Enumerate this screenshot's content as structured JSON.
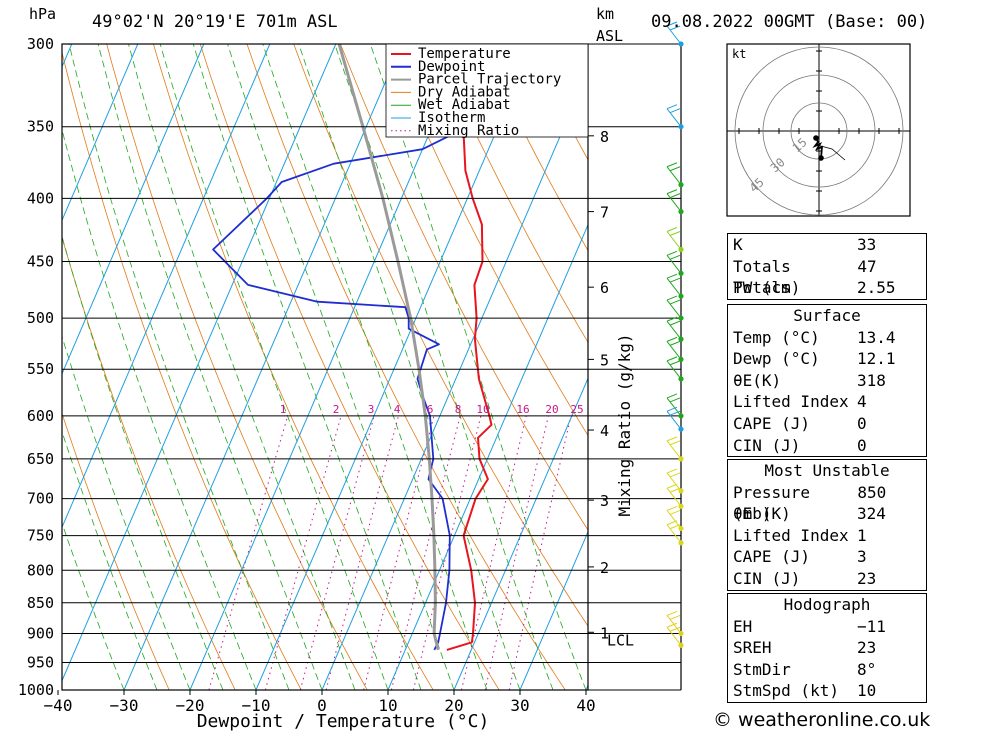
{
  "header": {
    "unit_hpa": "hPa",
    "location": "49°02'N 20°19'E 701m ASL",
    "unit_km": "km",
    "unit_asl": "ASL",
    "datetime": "09.08.2022 00GMT (Base: 00)"
  },
  "colors": {
    "temperature": "#e8141e",
    "dewpoint": "#1e2ecf",
    "parcel": "#9a9a9a",
    "dry_adiabat": "#e07b1a",
    "wet_adiabat": "#1fa81f",
    "isotherm": "#1f9fe0",
    "mixing_ratio": "#c8148c"
  },
  "chart_data": {
    "type": "line",
    "title": "",
    "xlabel": "Dewpoint / Temperature (°C)",
    "ylabel": "Mixing Ratio (g/kg)",
    "xlim": [
      -40,
      40
    ],
    "ylim_hpa": [
      1000,
      300
    ],
    "x_ticks": [
      "−40",
      "−30",
      "−20",
      "−10",
      "0",
      "10",
      "20",
      "30",
      "40"
    ],
    "pressure_ticks": [
      1000,
      950,
      900,
      850,
      800,
      750,
      700,
      650,
      600,
      550,
      500,
      450,
      400,
      350,
      300
    ],
    "km_ticks": [
      {
        "km": "1",
        "p": 898
      },
      {
        "km": "2",
        "p": 795
      },
      {
        "km": "3",
        "p": 702
      },
      {
        "km": "4",
        "p": 616
      },
      {
        "km": "5",
        "p": 540
      },
      {
        "km": "6",
        "p": 472
      },
      {
        "km": "7",
        "p": 410
      },
      {
        "km": "8",
        "p": 356
      }
    ],
    "lcl_label": "LCL",
    "lcl_p": 910,
    "mixing_ratio_labels": [
      "1",
      "2",
      "3",
      "4",
      "6",
      "8",
      "10",
      "16",
      "20",
      "25"
    ],
    "legend": [
      "Temperature",
      "Dewpoint",
      "Parcel Trajectory",
      "Dry Adiabat",
      "Wet Adiabat",
      "Isotherm",
      "Mixing Ratio"
    ],
    "series": [
      {
        "name": "Temperature",
        "points": [
          [
            928,
            16.3
          ],
          [
            915,
            19.6
          ],
          [
            900,
            19.2
          ],
          [
            850,
            17.5
          ],
          [
            800,
            14.8
          ],
          [
            750,
            11.4
          ],
          [
            700,
            10.8
          ],
          [
            675,
            11.4
          ],
          [
            650,
            8.8
          ],
          [
            625,
            7.2
          ],
          [
            610,
            8.4
          ],
          [
            600,
            7.5
          ],
          [
            560,
            3.5
          ],
          [
            520,
            0.3
          ],
          [
            500,
            -0.8
          ],
          [
            470,
            -3.3
          ],
          [
            450,
            -3.6
          ],
          [
            420,
            -6.1
          ],
          [
            400,
            -9.2
          ],
          [
            380,
            -12.1
          ],
          [
            360,
            -14.2
          ],
          [
            340,
            -16.5
          ],
          [
            320,
            -19.7
          ],
          [
            300,
            -24.1
          ]
        ]
      },
      {
        "name": "Dewpoint",
        "points": [
          [
            928,
            14.4
          ],
          [
            915,
            14.5
          ],
          [
            900,
            14.2
          ],
          [
            850,
            13.1
          ],
          [
            800,
            11.5
          ],
          [
            750,
            9.3
          ],
          [
            700,
            5.8
          ],
          [
            675,
            2.4
          ],
          [
            650,
            1.8
          ],
          [
            600,
            -1.5
          ],
          [
            580,
            -3.7
          ],
          [
            560,
            -5.8
          ],
          [
            530,
            -6.3
          ],
          [
            525,
            -4.8
          ],
          [
            510,
            -10.4
          ],
          [
            500,
            -11.1
          ],
          [
            490,
            -12.3
          ],
          [
            485,
            -26.0
          ],
          [
            470,
            -37.6
          ],
          [
            440,
            -45.2
          ],
          [
            400,
            -40.4
          ],
          [
            388,
            -39.2
          ],
          [
            375,
            -32.5
          ],
          [
            365,
            -20.0
          ],
          [
            343,
            -12.0
          ],
          [
            337,
            -20.0
          ],
          [
            330,
            -24.0
          ],
          [
            320,
            -23.0
          ],
          [
            300,
            -18.5
          ]
        ]
      },
      {
        "name": "Parcel Trajectory",
        "points": [
          [
            928,
            15.0
          ],
          [
            900,
            13.3
          ],
          [
            850,
            11.5
          ],
          [
            800,
            9.3
          ],
          [
            750,
            6.9
          ],
          [
            700,
            4.2
          ],
          [
            650,
            1.2
          ],
          [
            600,
            -2.2
          ],
          [
            550,
            -6.2
          ],
          [
            500,
            -10.8
          ],
          [
            450,
            -16.4
          ],
          [
            400,
            -22.8
          ],
          [
            350,
            -30.5
          ],
          [
            300,
            -39.5
          ]
        ]
      }
    ]
  },
  "hodograph": {
    "unit": "kt",
    "ring_labels": [
      "15",
      "30",
      "45"
    ]
  },
  "indices": {
    "k_label": "K",
    "k": "33",
    "tt_label": "Totals Totals",
    "tt": "47",
    "pw_label": "PW (cm)",
    "pw": "2.55"
  },
  "surface": {
    "title": "Surface",
    "temp_label": "Temp (°C)",
    "temp": "13.4",
    "dewp_label": "Dewp (°C)",
    "dewp": "12.1",
    "thetae_label": "θE(K)",
    "thetae": "318",
    "li_label": "Lifted Index",
    "li": "4",
    "cape_label": "CAPE (J)",
    "cape": "0",
    "cin_label": "CIN (J)",
    "cin": "0"
  },
  "most_unstable": {
    "title": "Most Unstable",
    "pressure_label": "Pressure (mb)",
    "pressure": "850",
    "thetae_label": "θE (K)",
    "thetae": "324",
    "li_label": "Lifted Index",
    "li": "1",
    "cape_label": "CAPE (J)",
    "cape": "3",
    "cin_label": "CIN (J)",
    "cin": "23"
  },
  "hodo_stats": {
    "title": "Hodograph",
    "eh_label": "EH",
    "eh": "−11",
    "sreh_label": "SREH",
    "sreh": "23",
    "stmdir_label": "StmDir",
    "stmdir": "8°",
    "stmspd_label": "StmSpd (kt)",
    "stmspd": "10"
  },
  "footer": "© weatheronline.co.uk"
}
